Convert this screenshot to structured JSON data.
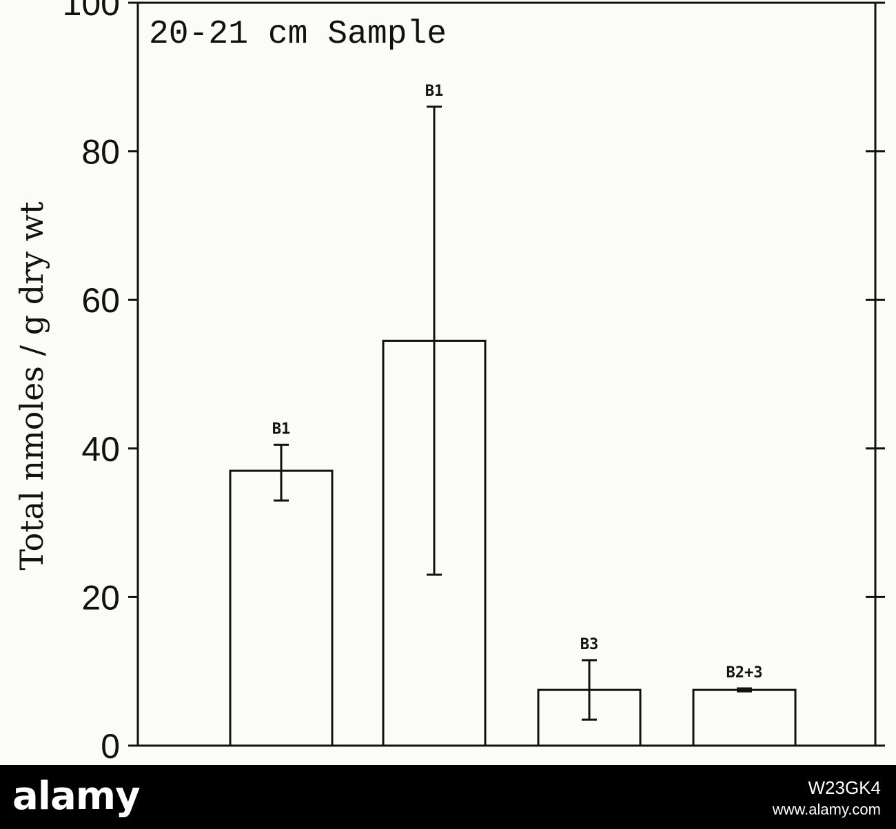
{
  "chart_data": {
    "type": "bar",
    "title": "20-21 cm Sample",
    "ylabel": "Total nmoles / g dry wt",
    "xlabel": "",
    "ylim": [
      0,
      100
    ],
    "yticks": [
      "0",
      "20",
      "40",
      "60",
      "80",
      "100"
    ],
    "grid": false,
    "bars": [
      {
        "label": "B1",
        "value": 37,
        "err_low": 33,
        "err_high": 40.5
      },
      {
        "label": "B1",
        "value": 54.5,
        "err_low": 23,
        "err_high": 86
      },
      {
        "label": "B3",
        "value": 7.5,
        "err_low": 3.5,
        "err_high": 11.5
      },
      {
        "label": "B2+3",
        "value": 7.5,
        "err_low": 7.3,
        "err_high": 7.7
      }
    ]
  },
  "watermark": {
    "logo": "alamy",
    "image_id": "W23GK4",
    "url": "www.alamy.com"
  }
}
